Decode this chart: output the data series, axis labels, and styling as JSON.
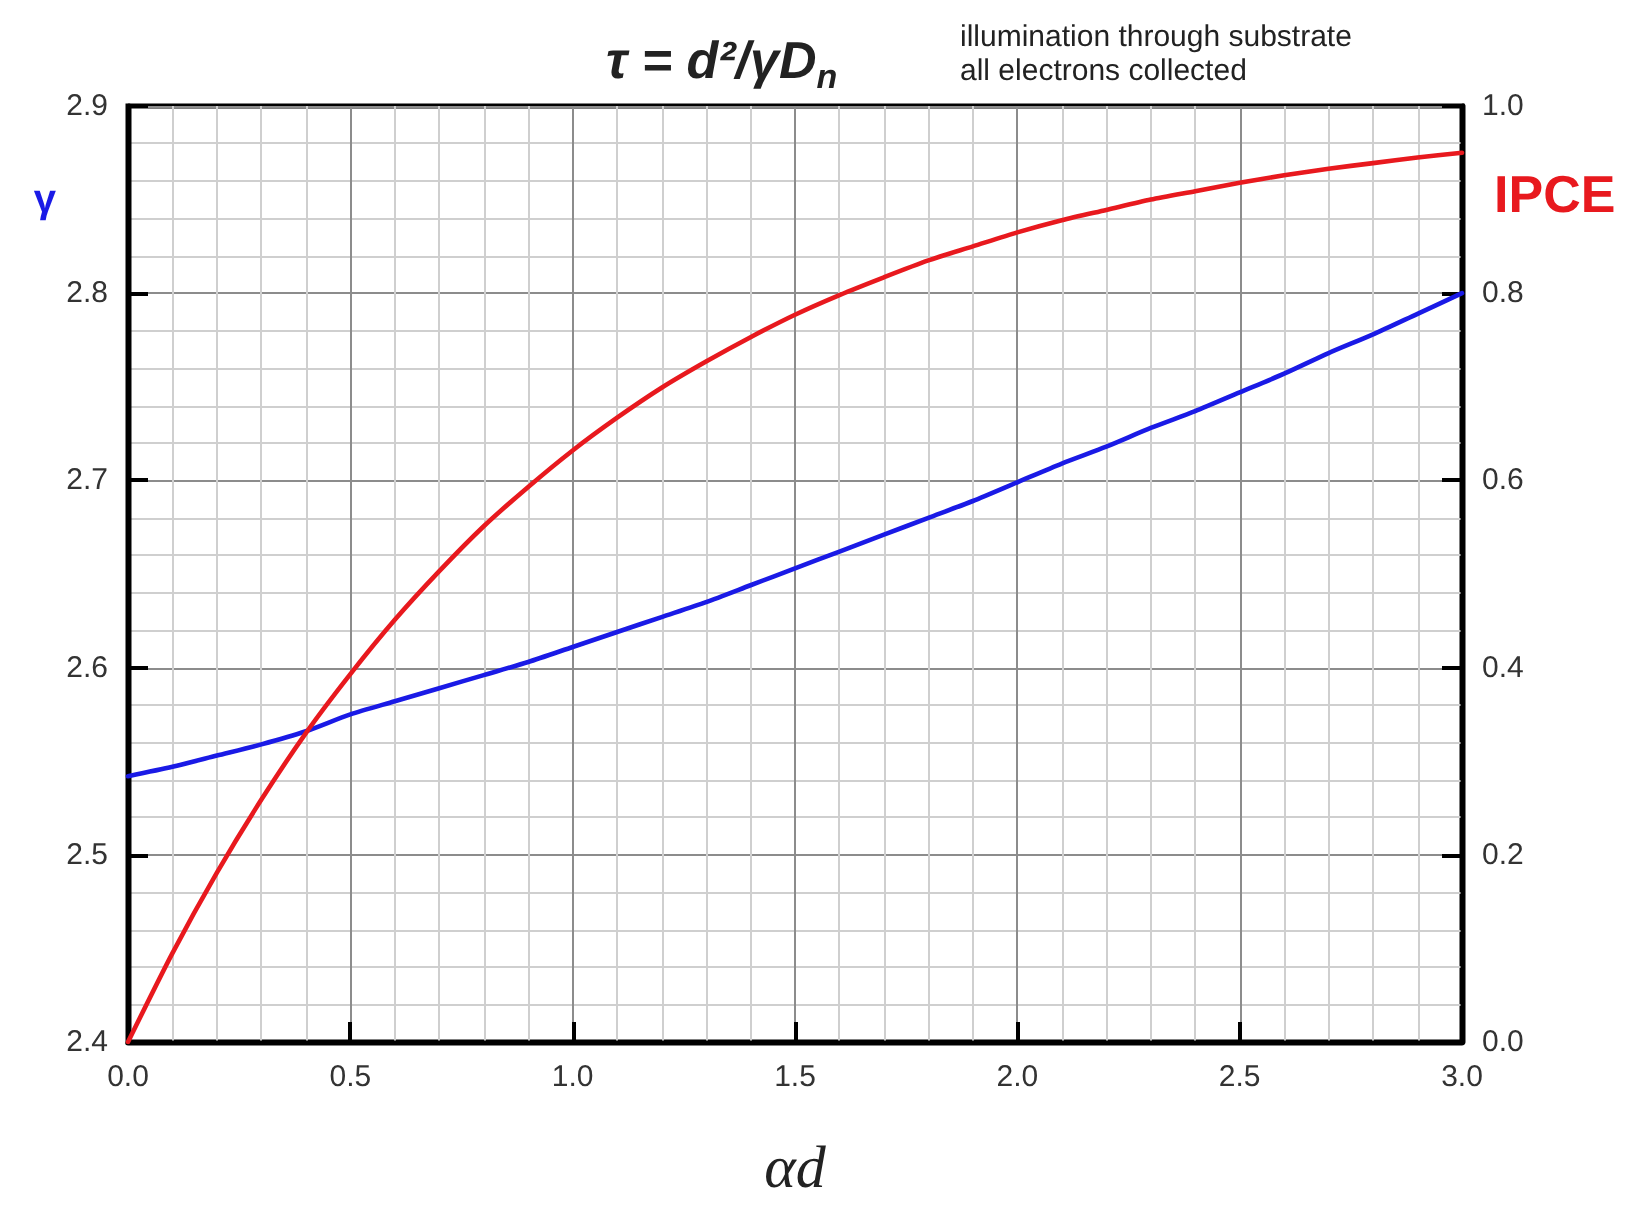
{
  "chart_data": {
    "type": "line",
    "title": "τ = d²/γD$_{n}$",
    "xlabel": "αd",
    "ylabel": "γ",
    "y2label": "IPCE",
    "annotations": [
      "illumination through substrate",
      "all electrons collected"
    ],
    "xlim": [
      0,
      3
    ],
    "xticks": [
      {
        "value": 0,
        "label": "0.0"
      },
      0.5,
      {
        "value": 1,
        "label": "1.0"
      },
      1.5,
      {
        "value": 2,
        "label": "2.0"
      },
      2.5,
      {
        "value": 3,
        "label": "3.0"
      }
    ],
    "ylim": [
      2.4,
      2.9
    ],
    "yticks": [
      2.4,
      2.5,
      2.6,
      2.7,
      2.8,
      2.9
    ],
    "y2lim": [
      0,
      1
    ],
    "y2ticks": [
      {
        "value": 0,
        "label": "0.0"
      },
      0.2,
      0.4,
      0.6,
      0.8,
      {
        "value": 1,
        "label": "1.0"
      }
    ],
    "grid": true,
    "marker": "none",
    "line_style": "solid",
    "x": [
      0,
      0.1,
      0.2,
      0.3,
      0.4,
      0.5,
      0.6,
      0.7,
      0.8,
      0.9,
      1,
      1.1,
      1.2,
      1.3,
      1.4,
      1.5,
      1.6,
      1.7,
      1.8,
      1.9,
      2,
      2.1,
      2.2,
      2.3,
      2.4,
      2.5,
      2.6,
      2.7,
      2.8,
      2.9,
      3
    ],
    "series": [
      {
        "color": "#1a1ae6",
        "values": [
          2.542,
          2.547,
          2.553,
          2.559,
          2.566,
          2.575,
          2.582,
          2.589,
          2.596,
          2.603,
          2.611,
          2.619,
          2.627,
          2.635,
          2.644,
          2.653,
          2.662,
          2.671,
          2.68,
          2.689,
          2.699,
          2.709,
          2.718,
          2.728,
          2.737,
          2.747,
          2.757,
          2.768,
          2.778,
          2.789,
          2.8
        ]
      },
      {
        "color": "#e8191e",
        "axis": "y2",
        "values": [
          0,
          0.095,
          0.181,
          0.259,
          0.33,
          0.393,
          0.451,
          0.503,
          0.551,
          0.593,
          0.632,
          0.667,
          0.699,
          0.727,
          0.753,
          0.777,
          0.798,
          0.817,
          0.835,
          0.85,
          0.865,
          0.878,
          0.889,
          0.9,
          0.909,
          0.918,
          0.926,
          0.933,
          0.939,
          0.945,
          0.95
        ]
      }
    ]
  }
}
